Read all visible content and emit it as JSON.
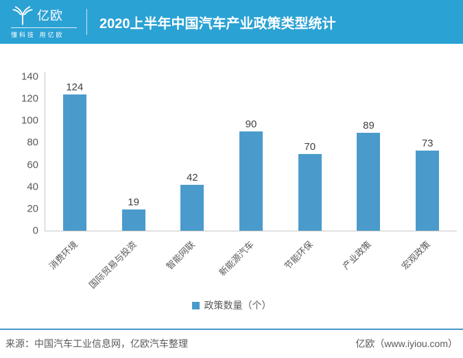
{
  "header": {
    "logo": {
      "name": "亿欧",
      "tagline": "懂科技 用亿欧"
    },
    "title": "2020上半年中国汽车产业政策类型统计"
  },
  "chart_data": {
    "type": "bar",
    "title": "2020上半年中国汽车产业政策类型统计",
    "categories": [
      "消费环境",
      "国际贸易与投资",
      "智能网联",
      "新能源汽车",
      "节能环保",
      "产业政策",
      "宏观政策"
    ],
    "values": [
      124,
      19,
      42,
      90,
      70,
      89,
      73
    ],
    "series": [
      {
        "name": "政策数量（个）",
        "values": [
          124,
          19,
          42,
          90,
          70,
          89,
          73
        ]
      }
    ],
    "xlabel": "",
    "ylabel": "",
    "ylim": [
      0,
      140
    ],
    "yticks": [
      0,
      20,
      40,
      60,
      80,
      100,
      120,
      140
    ],
    "grid": false,
    "data_labels": true,
    "legend": [
      "政策数量（个）"
    ],
    "legend_position": "bottom"
  },
  "footer": {
    "source": "来源：中国汽车工业信息网，亿欧汽车整理",
    "brand": "亿欧（www.iyiou.com）"
  },
  "colors": {
    "header_bg": "#2BA2D4",
    "header_text": "#FFFFFF",
    "bar": "#4A9BCC",
    "axis_line": "#C6C6C6",
    "axis_text": "#595959",
    "value_label_text": "#404040",
    "footer_divider": "#4596C8",
    "footer_text": "#595959"
  }
}
